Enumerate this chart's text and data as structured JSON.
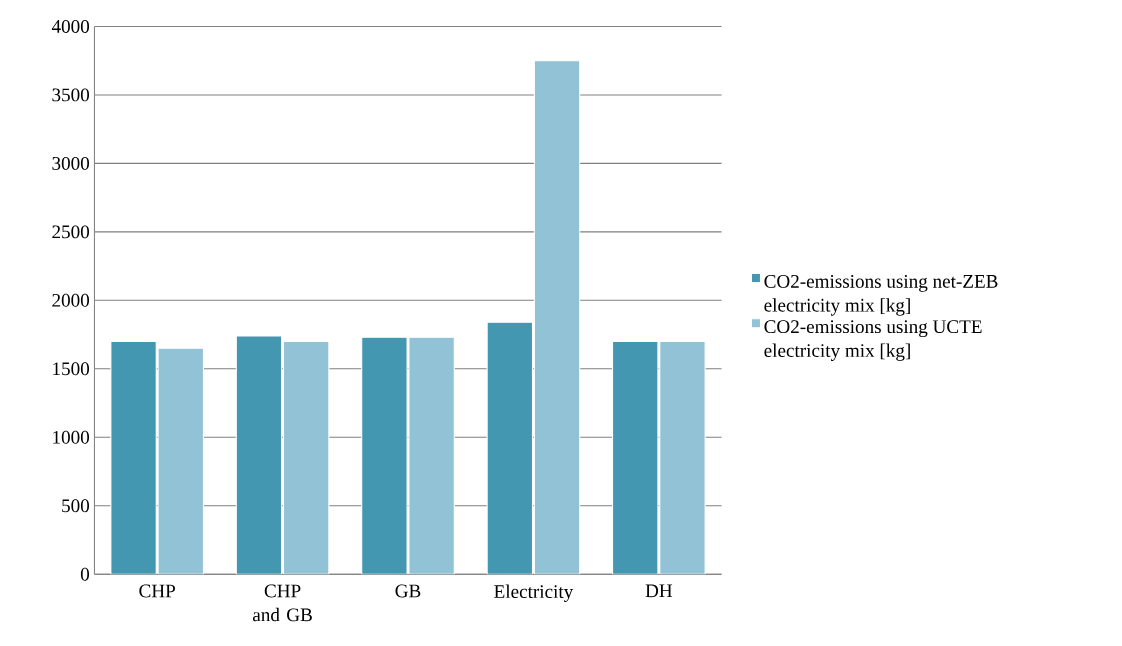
{
  "chart_data": {
    "type": "bar",
    "categories": [
      "CHP",
      "CHP and GB",
      "GB",
      "Electricity",
      "DH"
    ],
    "series": [
      {
        "name": "CO2-emissions using net-ZEB electricity mix [kg]",
        "color": "#4397b0",
        "values": [
          1700,
          1740,
          1730,
          1840,
          1700
        ]
      },
      {
        "name": "CO2-emissions using UCTE electricity mix [kg]",
        "color": "#92c2d5",
        "values": [
          1650,
          1700,
          1730,
          3750,
          1700
        ]
      }
    ],
    "ylim": [
      0,
      4000
    ],
    "yticks": [
      0,
      500,
      1000,
      1500,
      2000,
      2500,
      3000,
      3500,
      4000
    ],
    "grid": "y",
    "legend": "right"
  }
}
